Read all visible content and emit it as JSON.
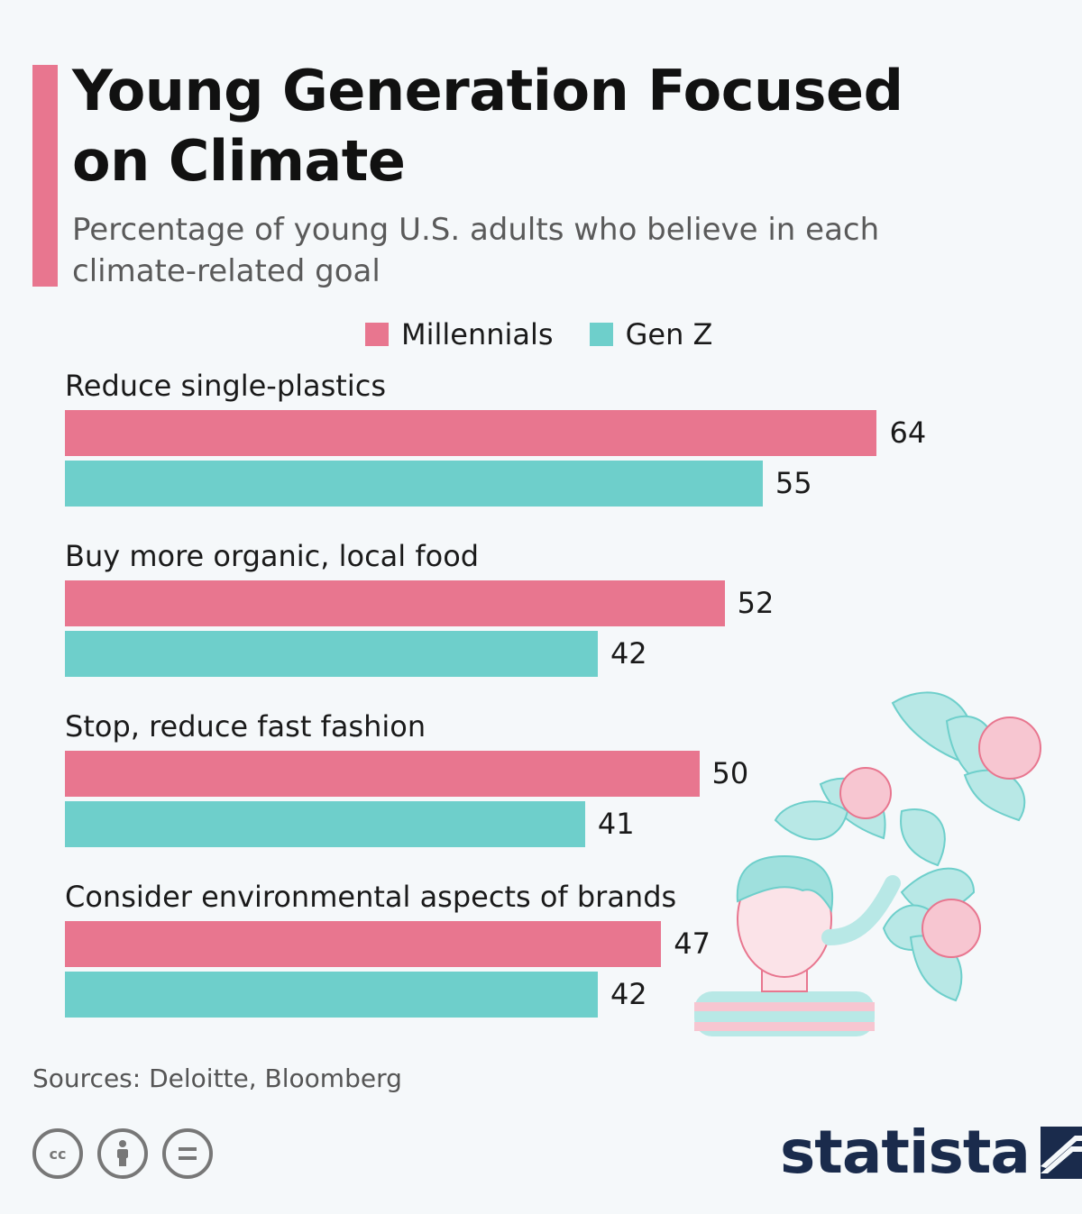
{
  "header": {
    "title": "Young Generation Focused on Climate",
    "subtitle": "Percentage of young U.S. adults who believe in each climate-related goal"
  },
  "colors": {
    "millennials": "#e8768f",
    "genz": "#6ecfcb",
    "accent": "#e8768f"
  },
  "chart_data": {
    "type": "bar",
    "orientation": "horizontal",
    "categories": [
      "Reduce single-plastics",
      "Buy more organic, local food",
      "Stop, reduce fast fashion",
      "Consider environmental aspects of brands"
    ],
    "series": [
      {
        "name": "Millennials",
        "values": [
          64,
          52,
          50,
          47
        ]
      },
      {
        "name": "Gen Z",
        "values": [
          55,
          42,
          41,
          42
        ]
      }
    ],
    "data_labels": true,
    "legend": "top",
    "grid": false
  },
  "footer": {
    "sources": "Sources: Deloitte, Bloomberg",
    "logo": "statista",
    "license_icons": [
      "cc-icon",
      "attribution-icon",
      "no-derivatives-icon"
    ]
  }
}
